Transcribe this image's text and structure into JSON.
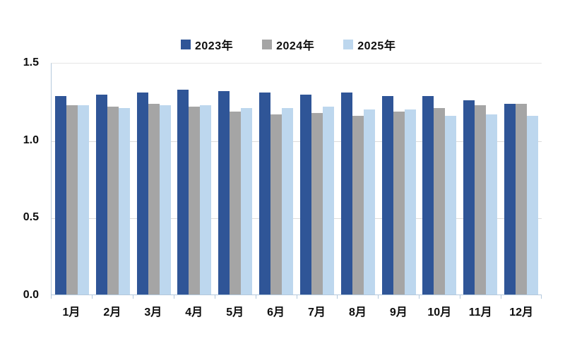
{
  "chart_data": {
    "type": "bar",
    "title": "",
    "xlabel": "",
    "ylabel": "",
    "categories": [
      "1月",
      "2月",
      "3月",
      "4月",
      "5月",
      "6月",
      "7月",
      "8月",
      "9月",
      "10月",
      "11月",
      "12月"
    ],
    "series": [
      {
        "name": "2023年",
        "color": "#2f5597",
        "values": [
          1.29,
          1.3,
          1.31,
          1.33,
          1.32,
          1.31,
          1.3,
          1.31,
          1.29,
          1.29,
          1.26,
          1.24
        ]
      },
      {
        "name": "2024年",
        "color": "#a5a5a5",
        "values": [
          1.23,
          1.22,
          1.24,
          1.22,
          1.19,
          1.17,
          1.18,
          1.16,
          1.19,
          1.21,
          1.23,
          1.24
        ]
      },
      {
        "name": "2025年",
        "color": "#bdd7ee",
        "values": [
          1.23,
          1.21,
          1.23,
          1.23,
          1.21,
          1.21,
          1.22,
          1.2,
          1.2,
          1.16,
          1.17,
          1.16
        ]
      }
    ],
    "ylim": [
      0.0,
      1.5
    ],
    "y_ticks": [
      0.0,
      0.5,
      1.0,
      1.5
    ],
    "y_tick_labels": [
      "0.0",
      "0.5",
      "1.0",
      "1.5"
    ],
    "grid": true,
    "legend_position": "top"
  },
  "colors": {
    "background": "#ffffff",
    "gridline": "#dcdcdc",
    "axis_line": "#b4c9dd",
    "text": "#0d0d0d"
  }
}
